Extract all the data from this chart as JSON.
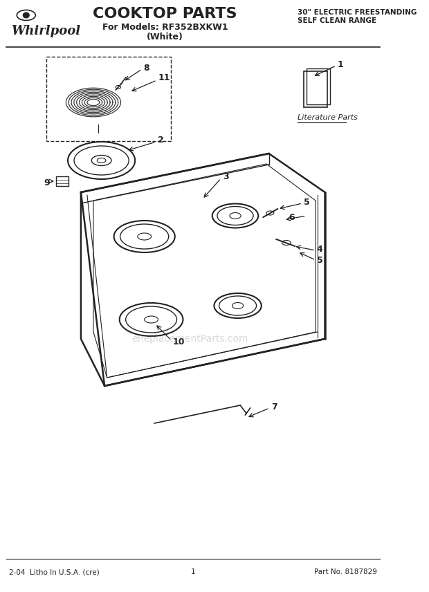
{
  "title": "COOKTOP PARTS",
  "subtitle1": "For Models: RF352BXKW1",
  "subtitle2": "(White)",
  "right_header1": "30\" ELECTRIC FREESTANDING",
  "right_header2": "SELF CLEAN RANGE",
  "footer_left": "2-04  Litho In U.S.A. (cre)",
  "footer_center": "1",
  "footer_right": "Part No. 8187829",
  "bg_color": "#ffffff",
  "line_color": "#222222",
  "watermark": "eReplacementParts.com"
}
